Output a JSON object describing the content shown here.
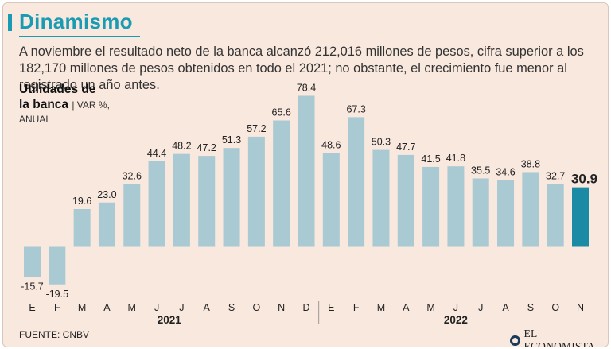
{
  "header": {
    "title": "Dinamismo",
    "subtitle": "A noviembre el resultado neto de la banca alcanzó 212,016 millones de pesos, cifra superior a los 182,170 millones de pesos obtenidos en todo el 2021; no obstante, el crecimiento fue menor al registrado un año antes."
  },
  "chart_heading": {
    "line1": "Utilidades de",
    "line2": "la banca",
    "unit1": "VAR %,",
    "unit2": "ANUAL"
  },
  "footer": {
    "source": "FUENTE: CNBV",
    "brand": "EL ECONOMISTA"
  },
  "colors": {
    "background": "#f9e8de",
    "bar": "#a9c9d3",
    "highlight": "#1a8aa5",
    "title": "#1a9bb4"
  },
  "chart_data": {
    "type": "bar",
    "title": "Utilidades de la banca",
    "ylabel": "VAR %, ANUAL",
    "xlabel": "",
    "categories": [
      "E",
      "F",
      "M",
      "A",
      "M",
      "J",
      "J",
      "A",
      "S",
      "O",
      "N",
      "D",
      "E",
      "F",
      "M",
      "A",
      "M",
      "J",
      "J",
      "A",
      "S",
      "O",
      "N"
    ],
    "values": [
      -15.7,
      -19.5,
      19.6,
      23.0,
      32.6,
      44.4,
      48.2,
      47.2,
      51.3,
      57.2,
      65.6,
      78.4,
      48.6,
      67.3,
      50.3,
      47.7,
      41.5,
      41.8,
      35.5,
      34.6,
      38.8,
      32.7,
      30.9
    ],
    "labels": [
      "-15.7",
      "-19.5",
      "19.6",
      "23.0",
      "32.6",
      "44.4",
      "48.2",
      "47.2",
      "51.3",
      "57.2",
      "65.6",
      "78.4",
      "48.6",
      "67.3",
      "50.3",
      "47.7",
      "41.5",
      "41.8",
      "35.5",
      "34.6",
      "38.8",
      "32.7",
      "30.9"
    ],
    "highlight_index": 22,
    "groups": [
      {
        "label": "2021",
        "start": 0,
        "end": 11
      },
      {
        "label": "2022",
        "start": 12,
        "end": 22
      }
    ],
    "ylim": [
      -20,
      80
    ],
    "grid": false,
    "legend": "none"
  }
}
